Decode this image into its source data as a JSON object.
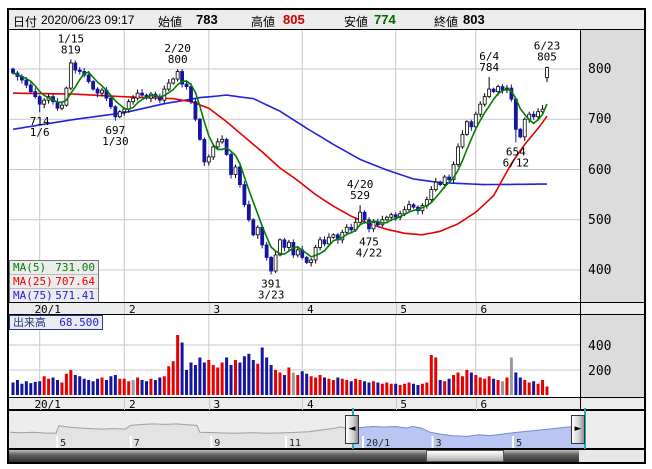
{
  "header": {
    "date_label": "日付",
    "date_value": "2020/06/23 09:17",
    "open_label": "始値",
    "open_value": "783",
    "high_label": "高値",
    "high_value": "805",
    "low_label": "安値",
    "low_value": "774",
    "close_label": "終値",
    "close_value": "803"
  },
  "legend": {
    "ma5_label": "MA(5)",
    "ma5_value": "731.00",
    "ma25_label": "MA(25)",
    "ma25_value": "707.64",
    "ma75_label": "MA(75)",
    "ma75_value": "571.41"
  },
  "volume_legend": {
    "label": "出来高",
    "value": "68.500"
  },
  "colors": {
    "up_candle": "#FFFFFF",
    "down_candle": "#1414A0",
    "candle_stroke": "#000000",
    "ma5": "#007F00",
    "ma25": "#E80000",
    "ma75": "#2222DD",
    "vol_up": "#E80000",
    "vol_down": "#1414A0",
    "vol_neutral": "#9A9A9A",
    "grid": "#C9C9C9",
    "high_text": "#CC0000",
    "low_text": "#006600",
    "nav_sel_fill": "#B9C6F2",
    "nav_sel_line": "#7888CC",
    "nav_unsel_fill": "#E3E3E3",
    "nav_unsel_line": "#A0A0A0",
    "marker": "#17AEC8"
  },
  "chart_data": {
    "type": "candlestick+volume",
    "price_ticks": [
      800,
      700,
      600,
      500,
      400
    ],
    "volume_ticks": [
      400,
      200
    ],
    "months": {
      "labels": [
        "20/1",
        "2",
        "3",
        "4",
        "5",
        "6"
      ],
      "start_indices": [
        6,
        25,
        44,
        65,
        86,
        104
      ]
    },
    "closes": [
      792,
      785,
      778,
      768,
      755,
      745,
      730,
      738,
      745,
      735,
      722,
      728,
      762,
      812,
      798,
      795,
      788,
      775,
      760,
      752,
      758,
      742,
      725,
      705,
      715,
      720,
      735,
      742,
      752,
      748,
      742,
      750,
      745,
      738,
      760,
      772,
      780,
      795,
      770,
      765,
      735,
      700,
      660,
      615,
      625,
      645,
      655,
      660,
      630,
      590,
      605,
      570,
      530,
      500,
      470,
      485,
      450,
      425,
      398,
      430,
      460,
      445,
      455,
      430,
      440,
      425,
      415,
      420,
      445,
      460,
      452,
      465,
      470,
      460,
      475,
      485,
      480,
      495,
      515,
      500,
      482,
      495,
      490,
      500,
      505,
      510,
      505,
      512,
      520,
      530,
      525,
      518,
      528,
      540,
      560,
      575,
      570,
      585,
      580,
      610,
      645,
      670,
      695,
      685,
      710,
      730,
      745,
      760,
      755,
      765,
      758,
      762,
      740,
      680,
      665,
      700,
      710,
      705,
      715,
      720,
      803
    ],
    "ohlc_overrides": {
      "6": [
        745,
        748,
        714,
        730
      ],
      "13": [
        762,
        819,
        758,
        812
      ],
      "23": [
        725,
        728,
        697,
        705
      ],
      "37": [
        780,
        800,
        775,
        795
      ],
      "58": [
        425,
        428,
        391,
        398
      ],
      "78": [
        495,
        529,
        492,
        515
      ],
      "80": [
        500,
        505,
        475,
        482
      ],
      "107": [
        745,
        784,
        742,
        760
      ],
      "113": [
        740,
        742,
        654,
        680
      ],
      "120": [
        783,
        805,
        774,
        803
      ]
    },
    "annotations": [
      {
        "i": 13,
        "line1": "1/15",
        "line2": "819",
        "pos": "above",
        "price": 819
      },
      {
        "i": 6,
        "line1": "714",
        "line2": "1/6",
        "pos": "below",
        "price": 714
      },
      {
        "i": 23,
        "line1": "697",
        "line2": "1/30",
        "pos": "below",
        "price": 697
      },
      {
        "i": 37,
        "line1": "2/20",
        "line2": "800",
        "pos": "above",
        "price": 800
      },
      {
        "i": 58,
        "line1": "391",
        "line2": "3/23",
        "pos": "below",
        "price": 391
      },
      {
        "i": 78,
        "line1": "4/20",
        "line2": "529",
        "pos": "above",
        "price": 529
      },
      {
        "i": 80,
        "line1": "475",
        "line2": "4/22",
        "pos": "below",
        "price": 475
      },
      {
        "i": 107,
        "line1": "6/4",
        "line2": "784",
        "pos": "above",
        "price": 784
      },
      {
        "i": 113,
        "line1": "654",
        "line2": "6/12",
        "pos": "below",
        "price": 654
      },
      {
        "i": 120,
        "line1": "6/23",
        "line2": "805",
        "pos": "above",
        "price": 805
      }
    ],
    "ma25_anchors": [
      [
        0,
        752
      ],
      [
        14,
        750
      ],
      [
        22,
        746
      ],
      [
        30,
        743
      ],
      [
        36,
        741
      ],
      [
        40,
        735
      ],
      [
        44,
        722
      ],
      [
        48,
        695
      ],
      [
        52,
        665
      ],
      [
        56,
        635
      ],
      [
        60,
        603
      ],
      [
        64,
        578
      ],
      [
        68,
        550
      ],
      [
        72,
        527
      ],
      [
        76,
        507
      ],
      [
        80,
        492
      ],
      [
        84,
        481
      ],
      [
        88,
        473
      ],
      [
        92,
        470
      ],
      [
        96,
        477
      ],
      [
        100,
        492
      ],
      [
        104,
        515
      ],
      [
        108,
        548
      ],
      [
        112,
        612
      ],
      [
        115,
        650
      ],
      [
        118,
        682
      ],
      [
        120,
        706
      ]
    ],
    "ma75_anchors": [
      [
        0,
        680
      ],
      [
        14,
        700
      ],
      [
        25,
        713
      ],
      [
        34,
        731
      ],
      [
        42,
        743
      ],
      [
        48,
        748
      ],
      [
        54,
        741
      ],
      [
        60,
        716
      ],
      [
        66,
        682
      ],
      [
        72,
        650
      ],
      [
        78,
        620
      ],
      [
        84,
        599
      ],
      [
        90,
        581
      ],
      [
        96,
        574
      ],
      [
        106,
        570
      ],
      [
        120,
        571
      ]
    ],
    "volumes": [
      100,
      120,
      90,
      110,
      95,
      105,
      110,
      150,
      130,
      140,
      120,
      100,
      170,
      200,
      160,
      150,
      130,
      120,
      110,
      130,
      140,
      120,
      150,
      160,
      130,
      130,
      110,
      120,
      140,
      120,
      110,
      130,
      120,
      140,
      150,
      230,
      270,
      480,
      420,
      200,
      260,
      240,
      300,
      260,
      280,
      240,
      220,
      260,
      300,
      240,
      280,
      260,
      310,
      330,
      280,
      250,
      380,
      300,
      240,
      200,
      180,
      160,
      220,
      180,
      160,
      190,
      170,
      150,
      140,
      160,
      140,
      130,
      120,
      140,
      130,
      120,
      110,
      130,
      120,
      110,
      100,
      110,
      100,
      90,
      100,
      90,
      90,
      80,
      90,
      100,
      90,
      80,
      90,
      100,
      320,
      300,
      120,
      110,
      130,
      160,
      180,
      150,
      200,
      180,
      160,
      140,
      130,
      150,
      130,
      120,
      110,
      140,
      300,
      180,
      140,
      120,
      100,
      110,
      90,
      120,
      68
    ],
    "gray_volume_indices": [
      27,
      63,
      110,
      112
    ],
    "nav": {
      "labels": [
        {
          "t": "5",
          "f": 0.082
        },
        {
          "t": "7",
          "f": 0.21
        },
        {
          "t": "9",
          "f": 0.35
        },
        {
          "t": "11",
          "f": 0.48
        },
        {
          "t": "20/1",
          "f": 0.614
        },
        {
          "t": "3",
          "f": 0.735
        },
        {
          "t": "5",
          "f": 0.875
        }
      ],
      "points": [
        [
          0,
          0.3
        ],
        [
          0.02,
          0.28
        ],
        [
          0.04,
          0.3
        ],
        [
          0.06,
          0.27
        ],
        [
          0.08,
          0.26
        ],
        [
          0.085,
          0.55
        ],
        [
          0.1,
          0.5
        ],
        [
          0.12,
          0.46
        ],
        [
          0.14,
          0.44
        ],
        [
          0.16,
          0.42
        ],
        [
          0.18,
          0.44
        ],
        [
          0.2,
          0.42
        ],
        [
          0.21,
          0.56
        ],
        [
          0.23,
          0.6
        ],
        [
          0.25,
          0.62
        ],
        [
          0.27,
          0.6
        ],
        [
          0.29,
          0.62
        ],
        [
          0.31,
          0.58
        ],
        [
          0.325,
          0.56
        ],
        [
          0.33,
          0.3
        ],
        [
          0.36,
          0.28
        ],
        [
          0.39,
          0.26
        ],
        [
          0.42,
          0.28
        ],
        [
          0.45,
          0.26
        ],
        [
          0.48,
          0.28
        ],
        [
          0.5,
          0.3
        ],
        [
          0.52,
          0.32
        ],
        [
          0.54,
          0.38
        ],
        [
          0.56,
          0.44
        ],
        [
          0.575,
          0.5
        ],
        [
          0.59,
          0.44
        ],
        [
          0.61,
          0.48
        ],
        [
          0.63,
          0.52
        ],
        [
          0.65,
          0.5
        ],
        [
          0.67,
          0.52
        ],
        [
          0.69,
          0.46
        ],
        [
          0.7,
          0.52
        ],
        [
          0.715,
          0.46
        ],
        [
          0.73,
          0.3
        ],
        [
          0.75,
          0.22
        ],
        [
          0.77,
          0.16
        ],
        [
          0.795,
          0.14
        ],
        [
          0.815,
          0.2
        ],
        [
          0.835,
          0.17
        ],
        [
          0.855,
          0.22
        ],
        [
          0.875,
          0.28
        ],
        [
          0.9,
          0.34
        ],
        [
          0.92,
          0.38
        ],
        [
          0.945,
          0.44
        ],
        [
          0.97,
          0.5
        ],
        [
          1.0,
          0.52
        ]
      ],
      "selection_start_f": 0.595,
      "selection_end_f": 1.0
    }
  }
}
